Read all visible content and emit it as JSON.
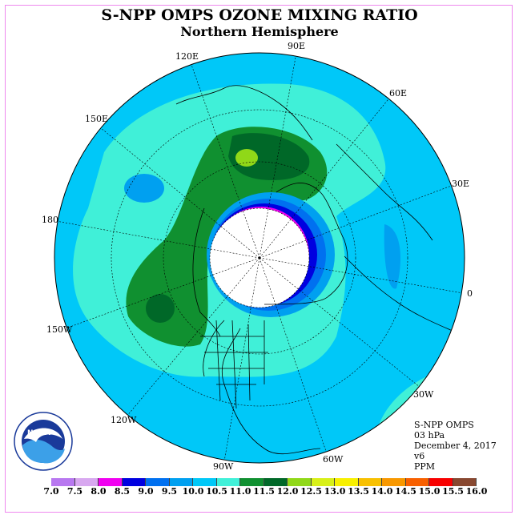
{
  "title": "S-NPP OMPS OZONE MIXING RATIO",
  "subtitle": "Northern Hemisphere",
  "longitudes": {
    "e90": "90E",
    "e120": "120E",
    "e60": "60E",
    "e150": "150E",
    "e30": "30E",
    "e180": "180",
    "zero": "0",
    "w150": "150W",
    "w30": "30W",
    "w120": "120W",
    "w60": "60W",
    "w90": "90W"
  },
  "info": {
    "instrument": "S-NPP OMPS",
    "level": "03 hPa",
    "date": "December 4, 2017",
    "version": "v6",
    "units": "PPM"
  },
  "logo": {
    "text": "NOAA",
    "ring": "NATIONAL OCEANIC AND ATMOSPHERIC ADMINISTRATION · U.S. DEPARTMENT OF COMMERCE"
  },
  "colorbar": {
    "ticks": [
      "7.0",
      "7.5",
      "8.0",
      "8.5",
      "9.0",
      "9.5",
      "10.0",
      "10.5",
      "11.0",
      "11.5",
      "12.0",
      "12.5",
      "13.0",
      "13.5",
      "14.0",
      "14.5",
      "15.0",
      "15.5",
      "16.0"
    ],
    "colors": [
      "#b878f0",
      "#d8a8f0",
      "#f000f0",
      "#0000e0",
      "#0070f0",
      "#00a0f0",
      "#00c8f8",
      "#40f0d8",
      "#109030",
      "#006828",
      "#90d818",
      "#d8f018",
      "#f8f000",
      "#f8c000",
      "#f89800",
      "#f86000",
      "#f80000",
      "#884830"
    ]
  }
}
